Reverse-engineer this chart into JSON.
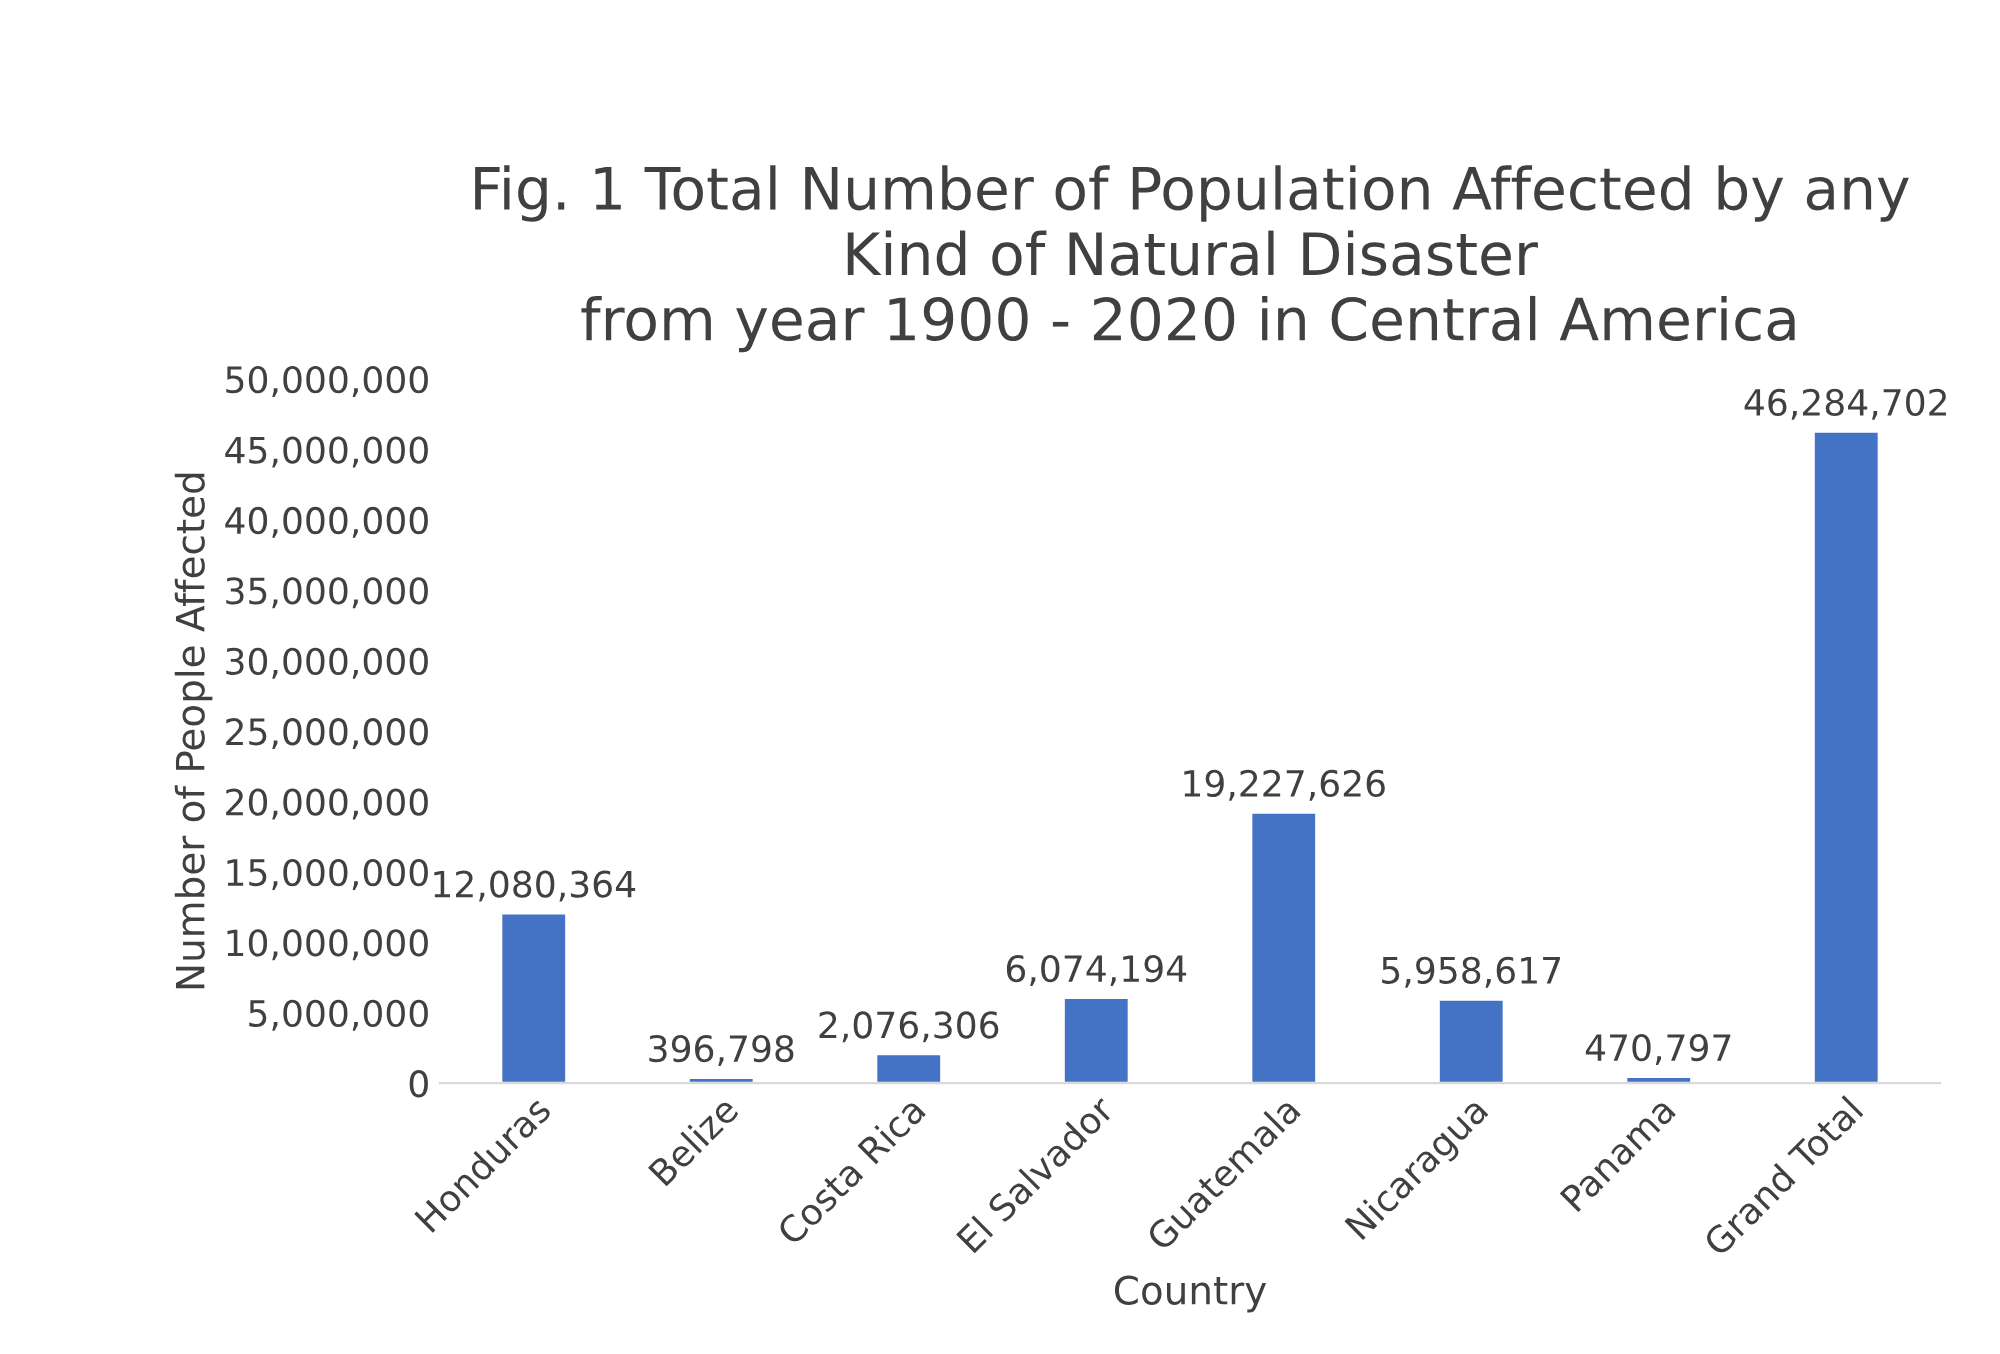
{
  "chart_data": {
    "type": "bar",
    "title": "Fig. 1 Total Number of Population Affected by any\nKind of Natural Disaster\nfrom year 1900 - 2020 in Central America",
    "xlabel": "Country",
    "ylabel": "Number of People Affected",
    "categories": [
      "Honduras",
      "Belize",
      "Costa Rica",
      "El Salvador",
      "Guatemala",
      "Nicaragua",
      "Panama",
      "Grand Total"
    ],
    "values": [
      12080364,
      396798,
      2076306,
      6074194,
      19227626,
      5958617,
      470797,
      46284702
    ],
    "color": "#4472c4",
    "ylim": [
      0,
      50000000
    ],
    "yticks": [
      0,
      {
        "value": 5000000,
        "label": "5,000,000"
      },
      {
        "value": 10000000,
        "label": "10,000,000"
      },
      {
        "value": 15000000,
        "label": "15,000,000"
      },
      {
        "value": 20000000,
        "label": "20,000,000"
      },
      {
        "value": 25000000,
        "label": "25,000,000"
      },
      {
        "value": 30000000,
        "label": "30,000,000"
      },
      {
        "value": 35000000,
        "label": "35,000,000"
      },
      {
        "value": 40000000,
        "label": "40,000,000"
      },
      {
        "value": 45000000,
        "label": "45,000,000"
      },
      {
        "value": 50000000,
        "label": "50,000,000"
      }
    ],
    "value_labels": [
      "12,080,364",
      "396,798",
      "2,076,306",
      "6,074,194",
      "19,227,626",
      "5,958,617",
      "470,797",
      "46,284,702"
    ],
    "grid": false
  }
}
